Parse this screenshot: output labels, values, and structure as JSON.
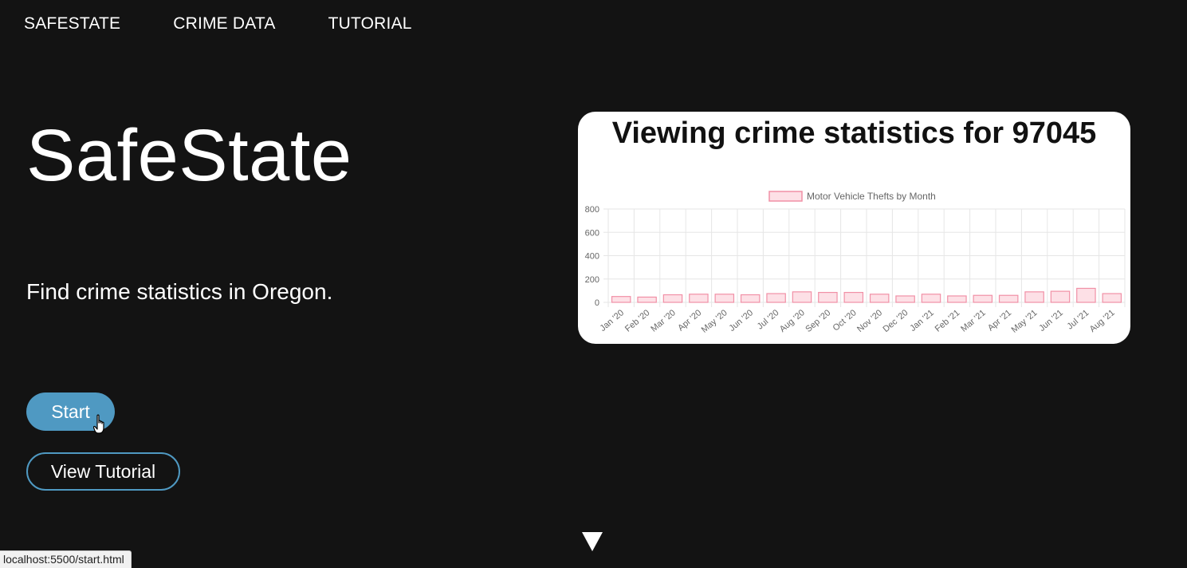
{
  "nav": {
    "items": [
      {
        "label": "SAFESTATE"
      },
      {
        "label": "CRIME DATA"
      },
      {
        "label": "TUTORIAL"
      }
    ]
  },
  "hero": {
    "title": "SafeState",
    "tagline": "Find crime statistics in Oregon.",
    "start_label": "Start",
    "tutorial_label": "View Tutorial"
  },
  "chart_card": {
    "title": "Viewing crime statistics for 97045"
  },
  "chart_data": {
    "type": "bar",
    "legend": "Motor Vehicle Thefts by Month",
    "legend_position": "top",
    "categories": [
      "Jan '20",
      "Feb '20",
      "Mar '20",
      "Apr '20",
      "May '20",
      "Jun '20",
      "Jul '20",
      "Aug '20",
      "Sep '20",
      "Oct '20",
      "Nov '20",
      "Dec '20",
      "Jan '21",
      "Feb '21",
      "Mar '21",
      "Apr '21",
      "May '21",
      "Jun '21",
      "Jul '21",
      "Aug '21"
    ],
    "values": [
      50,
      45,
      65,
      70,
      70,
      65,
      75,
      90,
      85,
      85,
      70,
      55,
      70,
      55,
      60,
      60,
      90,
      95,
      120,
      75
    ],
    "ylim": [
      0,
      800
    ],
    "yticks": [
      0,
      200,
      400,
      600,
      800
    ],
    "grid": true,
    "bar_fill": "#fde0e6",
    "bar_stroke": "#f190a6"
  },
  "status_bar": {
    "url": "localhost:5500/start.html"
  },
  "colors": {
    "background": "#131313",
    "accent": "#4f99c2"
  },
  "icons": {
    "cursor": "hand-pointer-icon",
    "scroll": "down-arrow-icon"
  }
}
